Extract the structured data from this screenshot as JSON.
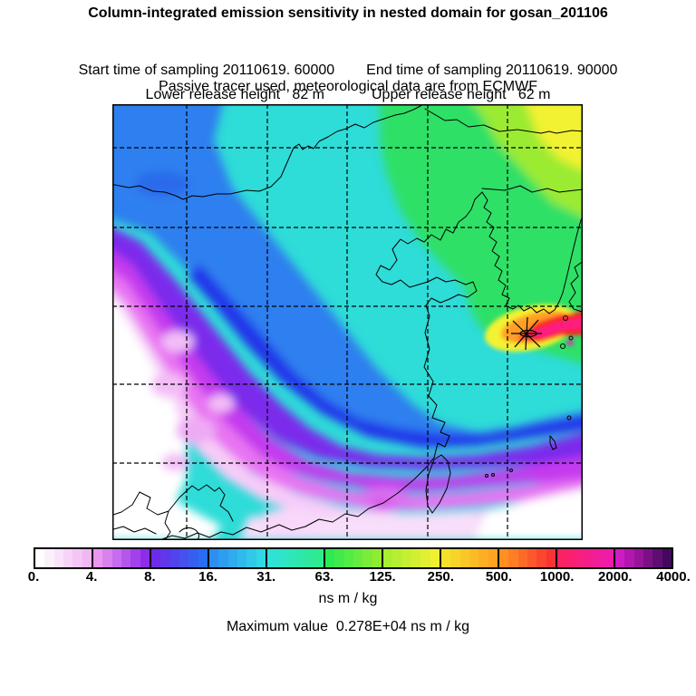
{
  "header": {
    "title": "Column-integrated emission sensitivity in nested domain for gosan_201106",
    "start_time": "Start time of sampling 20110619. 60000",
    "end_time": "End time of sampling 20110619. 90000",
    "lower_release": "Lower release height   82 m",
    "upper_release": "Upper release height   62 m",
    "tracer_info": "Passive tracer used, meteorological data are from ECMWF"
  },
  "footer": {
    "units": "ns m / kg",
    "max_line": "Maximum value  0.278E+04 ns m / kg"
  },
  "chart_data": {
    "type": "heatmap",
    "title": "Column-integrated emission sensitivity in nested domain for gosan_201106",
    "subtitle_lines": [
      "Start time of sampling 20110619. 60000    End time of sampling 20110619. 90000",
      "Lower release height 82 m    Upper release height 62 m",
      "Passive tracer used, meteorological data are from ECMWF"
    ],
    "description": "Filled-contour footprint emission-sensitivity field over East Asia (nested domain). A star marks the Gosan receptor on Jeju Island; the band of maximum sensitivity (red/pink, >1000) extends east-northeast from the station toward Japan. Green/yellow high values cover Korea and northeast China, cyan mid values cover central China, and values fall through blue/purple/pink bands to near zero (white) over inland southwest China and the far southeast ocean corner.",
    "levels": [
      0,
      4,
      8,
      16,
      31,
      63,
      125,
      250,
      500,
      1000,
      2000,
      4000
    ],
    "level_labels": [
      "0.",
      "4.",
      "8.",
      "16.",
      "31.",
      "63.",
      "125.",
      "250.",
      "500.",
      "1000.",
      "2000.",
      "4000."
    ],
    "units": "ns m / kg",
    "maximum_value": "0.278E+04",
    "station": {
      "name": "gosan",
      "marker": "asterisk-star"
    },
    "grid": {
      "vertical_gridlines": 5,
      "horizontal_gridlines": 5,
      "style": "dashed",
      "frame": "solid black"
    },
    "legend_position": "bottom-colorbar",
    "colorbar_segments": [
      {
        "from": "0.",
        "to": "4.",
        "start": "#ffffff",
        "end": "#f1b6f3"
      },
      {
        "from": "4.",
        "to": "8.",
        "start": "#eb97f0",
        "end": "#8e2cea"
      },
      {
        "from": "8.",
        "to": "16.",
        "start": "#6d2ae9",
        "end": "#2a6cf0"
      },
      {
        "from": "16.",
        "to": "31.",
        "start": "#2e8ef2",
        "end": "#30d8e6"
      },
      {
        "from": "31.",
        "to": "63.",
        "start": "#2fe2d8",
        "end": "#2eeb8e"
      },
      {
        "from": "63.",
        "to": "125.",
        "start": "#2cea52",
        "end": "#8fec32"
      },
      {
        "from": "125.",
        "to": "250.",
        "start": "#a8ee32",
        "end": "#f0f032"
      },
      {
        "from": "250.",
        "to": "500.",
        "start": "#f4e02c",
        "end": "#ffa322"
      },
      {
        "from": "500.",
        "to": "1000.",
        "start": "#ff9020",
        "end": "#f93434"
      },
      {
        "from": "1000.",
        "to": "2000.",
        "start": "#fb2262",
        "end": "#ee1caa"
      },
      {
        "from": "2000.",
        "to": "4000.",
        "start": "#cf1bc2",
        "end": "#43095c"
      }
    ],
    "cells_per_segment": 6
  }
}
